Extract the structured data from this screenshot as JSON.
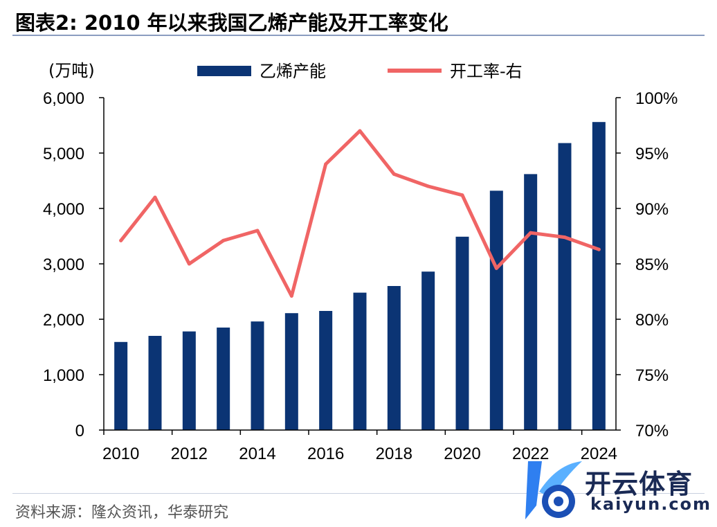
{
  "title": "图表2:   2010 年以来我国乙烯产能及开工率变化",
  "source": "资料来源：隆众资讯，华泰研究",
  "watermark": {
    "cn": "开云体育",
    "en": "kaiyun.com"
  },
  "colors": {
    "bar": "#0b3474",
    "line": "#f06565",
    "axis": "#000000"
  },
  "chart_data": {
    "type": "bar+line",
    "left_axis_unit": "(万吨)",
    "categories": [
      "2010",
      "2011",
      "2012",
      "2013",
      "2014",
      "2015",
      "2016",
      "2017",
      "2018",
      "2019",
      "2020",
      "2021",
      "2022",
      "2023",
      "2024"
    ],
    "x_tick_labels": [
      "2010",
      "2012",
      "2014",
      "2016",
      "2018",
      "2020",
      "2022",
      "2024"
    ],
    "ylim_left": [
      0,
      6000
    ],
    "y_left_ticks": [
      "0",
      "1,000",
      "2,000",
      "3,000",
      "4,000",
      "5,000",
      "6,000"
    ],
    "ylim_right": [
      70,
      100
    ],
    "y_right_ticks": [
      "70%",
      "75%",
      "80%",
      "85%",
      "90%",
      "95%",
      "100%"
    ],
    "series": [
      {
        "name": "乙烯产能",
        "type": "bar",
        "axis": "left",
        "values": [
          1590,
          1700,
          1780,
          1850,
          1960,
          2110,
          2150,
          2480,
          2600,
          2860,
          3490,
          4320,
          4620,
          5180,
          5560
        ]
      },
      {
        "name": "开工率-右",
        "type": "line",
        "axis": "right",
        "values": [
          87.1,
          91.0,
          85.0,
          87.1,
          88.0,
          82.1,
          94.0,
          97.0,
          93.1,
          92.0,
          91.2,
          84.6,
          87.8,
          87.4,
          86.3
        ]
      }
    ]
  }
}
